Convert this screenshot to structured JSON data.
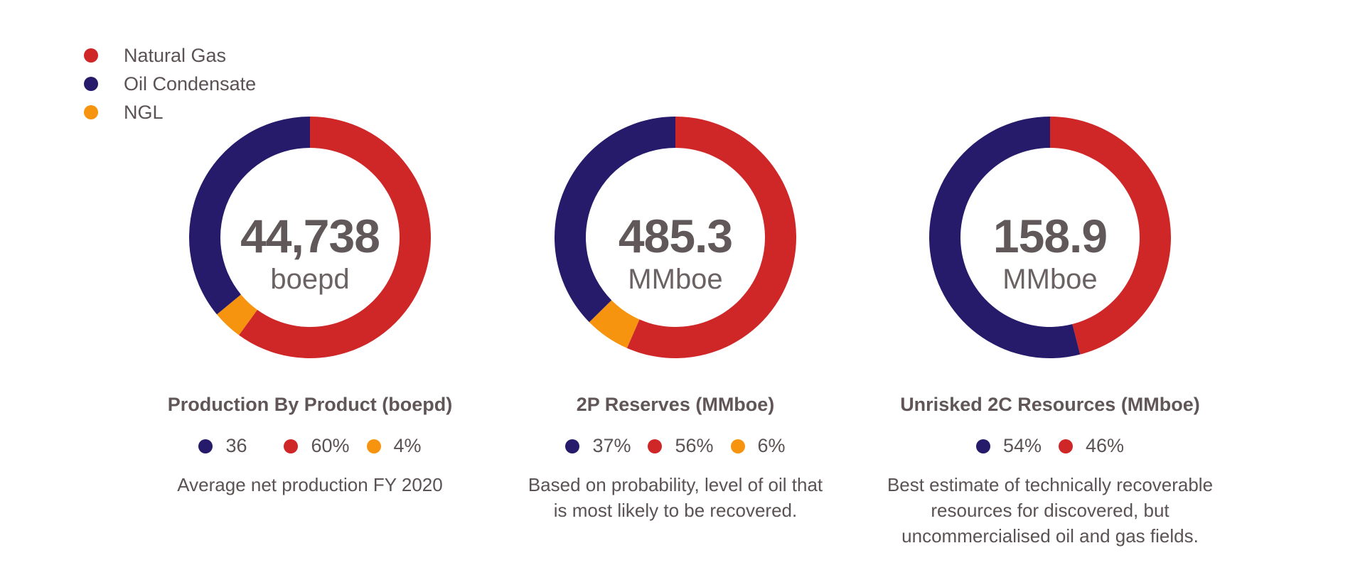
{
  "legend": [
    {
      "label": "Natural Gas",
      "color": "#cf2627"
    },
    {
      "label": "Oil Condensate",
      "color": "#261a6b"
    },
    {
      "label": "NGL",
      "color": "#f7940f"
    }
  ],
  "panels": [
    {
      "value": "44,738",
      "unit": "boepd",
      "title": "Production By Product (boepd)",
      "stats": [
        {
          "text": "36",
          "color": "#261a6b"
        },
        {
          "text": "60%",
          "color": "#cf2627"
        },
        {
          "text": "4%",
          "color": "#f7940f"
        }
      ],
      "description": "Average net production FY 2020"
    },
    {
      "value": "485.3",
      "unit": "MMboe",
      "title": "2P Reserves (MMboe)",
      "stats": [
        {
          "text": "37%",
          "color": "#261a6b"
        },
        {
          "text": "56%",
          "color": "#cf2627"
        },
        {
          "text": "6%",
          "color": "#f7940f"
        }
      ],
      "description": "Based on probability, level of oil that is most likely to be recovered."
    },
    {
      "value": "158.9",
      "unit": "MMboe",
      "title": "Unrisked 2C Resources (MMboe)",
      "stats": [
        {
          "text": "54%",
          "color": "#261a6b"
        },
        {
          "text": "46%",
          "color": "#cf2627"
        }
      ],
      "description": "Best estimate of technically recoverable resources for discovered, but uncommercialised oil and gas fields."
    }
  ],
  "chart_data": [
    {
      "type": "pie",
      "style": "donut",
      "title": "Production By Product (boepd)",
      "center_label": "44,738 boepd",
      "categories": [
        "Natural Gas",
        "NGL",
        "Oil Condensate"
      ],
      "values": [
        60,
        4,
        36
      ],
      "colors": [
        "#cf2627",
        "#f7940f",
        "#261a6b"
      ]
    },
    {
      "type": "pie",
      "style": "donut",
      "title": "2P Reserves (MMboe)",
      "center_label": "485.3 MMboe",
      "categories": [
        "Natural Gas",
        "NGL",
        "Oil Condensate"
      ],
      "values": [
        56,
        6,
        37
      ],
      "colors": [
        "#cf2627",
        "#f7940f",
        "#261a6b"
      ]
    },
    {
      "type": "pie",
      "style": "donut",
      "title": "Unrisked 2C Resources (MMboe)",
      "center_label": "158.9 MMboe",
      "categories": [
        "Natural Gas",
        "Oil Condensate"
      ],
      "values": [
        46,
        54
      ],
      "colors": [
        "#cf2627",
        "#261a6b"
      ]
    }
  ]
}
